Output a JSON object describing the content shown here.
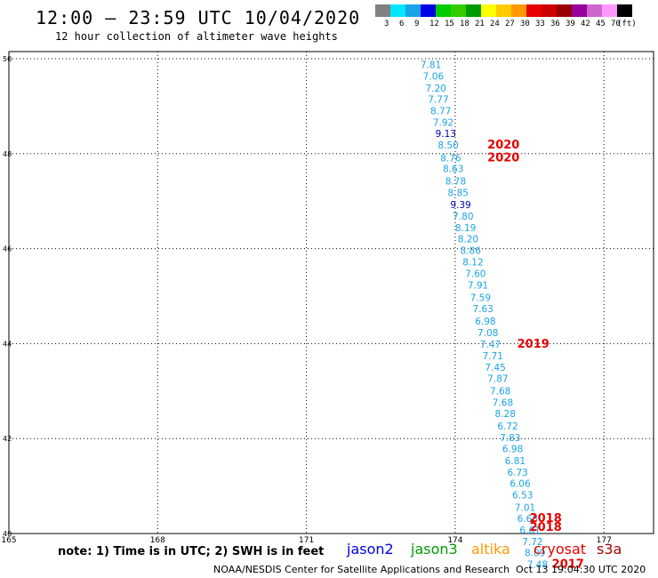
{
  "title": "12:00 – 23:59 UTC 10/04/2020",
  "subtitle": "12 hour collection of altimeter wave heights",
  "legend": {
    "colors": [
      "#808080",
      "#00e6ff",
      "#1aa3e6",
      "#0000e6",
      "#00cc00",
      "#33cc00",
      "#009900",
      "#ffff00",
      "#ffcc00",
      "#ff9900",
      "#e60000",
      "#cc0000",
      "#990000",
      "#99009e",
      "#cc66cc",
      "#ff99ff",
      "#000000"
    ],
    "labels": [
      "3",
      "6",
      "9",
      "12",
      "15",
      "18",
      "21",
      "24",
      "27",
      "30",
      "33",
      "36",
      "39",
      "42",
      "45",
      "70",
      "(ft)"
    ]
  },
  "axes": {
    "x_ticks": [
      "165",
      "168",
      "171",
      "174",
      "177"
    ],
    "y_ticks": [
      "50",
      "48",
      "46",
      "44",
      "42",
      "40"
    ]
  },
  "chart_data": {
    "type": "scatter",
    "xlim": [
      165,
      178
    ],
    "ylim": [
      40,
      50
    ],
    "grid": true,
    "swh_points": [
      {
        "lon": 173.3,
        "lat": 49.8,
        "v": "7.81",
        "color": "#1aa3e6"
      },
      {
        "lon": 173.35,
        "lat": 49.56,
        "v": "7.06",
        "color": "#1aa3e6"
      },
      {
        "lon": 173.4,
        "lat": 49.31,
        "v": "7.20",
        "color": "#1aa3e6"
      },
      {
        "lon": 173.45,
        "lat": 49.07,
        "v": "7.77",
        "color": "#1aa3e6"
      },
      {
        "lon": 173.5,
        "lat": 48.83,
        "v": "8.77",
        "color": "#1aa3e6"
      },
      {
        "lon": 173.55,
        "lat": 48.59,
        "v": "7.92",
        "color": "#1aa3e6"
      },
      {
        "lon": 173.6,
        "lat": 48.35,
        "v": "9.13",
        "color": "#0000b0"
      },
      {
        "lon": 173.65,
        "lat": 48.11,
        "v": "8.50",
        "color": "#1aa3e6"
      },
      {
        "lon": 173.7,
        "lat": 47.84,
        "v": "8.76",
        "color": "#1aa3e6"
      },
      {
        "lon": 173.75,
        "lat": 47.61,
        "v": "8.63",
        "color": "#1aa3e6"
      },
      {
        "lon": 173.8,
        "lat": 47.35,
        "v": "8.78",
        "color": "#1aa3e6"
      },
      {
        "lon": 173.85,
        "lat": 47.11,
        "v": "8.85",
        "color": "#1aa3e6"
      },
      {
        "lon": 173.9,
        "lat": 46.85,
        "v": "9.39",
        "color": "#0000b0"
      },
      {
        "lon": 173.95,
        "lat": 46.61,
        "v": "7.80",
        "color": "#1aa3e6"
      },
      {
        "lon": 174.0,
        "lat": 46.37,
        "v": "8.19",
        "color": "#1aa3e6"
      },
      {
        "lon": 174.05,
        "lat": 46.13,
        "v": "8.20",
        "color": "#1aa3e6"
      },
      {
        "lon": 174.1,
        "lat": 45.89,
        "v": "8.86",
        "color": "#1aa3e6"
      },
      {
        "lon": 174.15,
        "lat": 45.65,
        "v": "8.12",
        "color": "#1aa3e6"
      },
      {
        "lon": 174.2,
        "lat": 45.4,
        "v": "7.60",
        "color": "#1aa3e6"
      },
      {
        "lon": 174.25,
        "lat": 45.16,
        "v": "7.91",
        "color": "#1aa3e6"
      },
      {
        "lon": 174.3,
        "lat": 44.9,
        "v": "7.59",
        "color": "#1aa3e6"
      },
      {
        "lon": 174.35,
        "lat": 44.66,
        "v": "7.63",
        "color": "#1aa3e6"
      },
      {
        "lon": 174.4,
        "lat": 44.4,
        "v": "6.98",
        "color": "#1aa3e6"
      },
      {
        "lon": 174.45,
        "lat": 44.16,
        "v": "7.08",
        "color": "#1aa3e6"
      },
      {
        "lon": 174.5,
        "lat": 43.91,
        "v": "7.47",
        "color": "#1aa3e6"
      },
      {
        "lon": 174.55,
        "lat": 43.67,
        "v": "7.71",
        "color": "#1aa3e6"
      },
      {
        "lon": 174.6,
        "lat": 43.43,
        "v": "7.45",
        "color": "#1aa3e6"
      },
      {
        "lon": 174.65,
        "lat": 43.19,
        "v": "7.87",
        "color": "#1aa3e6"
      },
      {
        "lon": 174.7,
        "lat": 42.93,
        "v": "7.68",
        "color": "#1aa3e6"
      },
      {
        "lon": 174.75,
        "lat": 42.69,
        "v": "7.68",
        "color": "#1aa3e6"
      },
      {
        "lon": 174.8,
        "lat": 42.45,
        "v": "8.28",
        "color": "#1aa3e6"
      },
      {
        "lon": 174.85,
        "lat": 42.19,
        "v": "6.72",
        "color": "#1aa3e6"
      },
      {
        "lon": 174.9,
        "lat": 41.95,
        "v": "7.83",
        "color": "#1aa3e6"
      },
      {
        "lon": 174.95,
        "lat": 41.71,
        "v": "6.98",
        "color": "#1aa3e6"
      },
      {
        "lon": 175.0,
        "lat": 41.46,
        "v": "6.81",
        "color": "#1aa3e6"
      },
      {
        "lon": 175.05,
        "lat": 41.22,
        "v": "6.73",
        "color": "#1aa3e6"
      },
      {
        "lon": 175.1,
        "lat": 40.98,
        "v": "6.06",
        "color": "#1aa3e6"
      },
      {
        "lon": 175.15,
        "lat": 40.74,
        "v": "6.53",
        "color": "#1aa3e6"
      },
      {
        "lon": 175.2,
        "lat": 40.48,
        "v": "7.01",
        "color": "#1aa3e6"
      },
      {
        "lon": 175.25,
        "lat": 40.24,
        "v": "6.68",
        "color": "#1aa3e6"
      },
      {
        "lon": 175.3,
        "lat": 40.0,
        "v": "6.61",
        "color": "#1aa3e6"
      },
      {
        "lon": 175.35,
        "lat": 39.76,
        "v": "7.72",
        "color": "#1aa3e6"
      },
      {
        "lon": 175.4,
        "lat": 39.52,
        "v": "8.09",
        "color": "#1aa3e6"
      },
      {
        "lon": 175.45,
        "lat": 39.28,
        "v": "7.48",
        "color": "#1aa3e6"
      }
    ],
    "track_labels": [
      {
        "lon": 174.65,
        "lat": 48.11,
        "text": "2020",
        "color": "#e60000"
      },
      {
        "lon": 174.65,
        "lat": 47.84,
        "text": "2020",
        "color": "#e60000"
      },
      {
        "lon": 175.25,
        "lat": 43.91,
        "text": "2019",
        "color": "#e60000"
      },
      {
        "lon": 175.5,
        "lat": 40.24,
        "text": "2018",
        "color": "#e60000"
      },
      {
        "lon": 175.5,
        "lat": 40.06,
        "text": "2018",
        "color": "#e60000"
      },
      {
        "lon": 175.95,
        "lat": 39.28,
        "text": "2017",
        "color": "#e60000"
      }
    ]
  },
  "note": "note: 1) Time is in UTC; 2) SWH is in feet",
  "satellites": [
    {
      "name": "jason2",
      "color": "#0000e6"
    },
    {
      "name": "jason3",
      "color": "#009900"
    },
    {
      "name": "altika",
      "color": "#ff9900"
    },
    {
      "name": "cryosat",
      "color": "#e60000"
    },
    {
      "name": "s3a",
      "color": "#990000"
    }
  ],
  "footer": {
    "org": "NOAA/NESDIS Center for Satellite Applications and Research",
    "time": "Oct 13 19:04:30 UTC 2020"
  }
}
